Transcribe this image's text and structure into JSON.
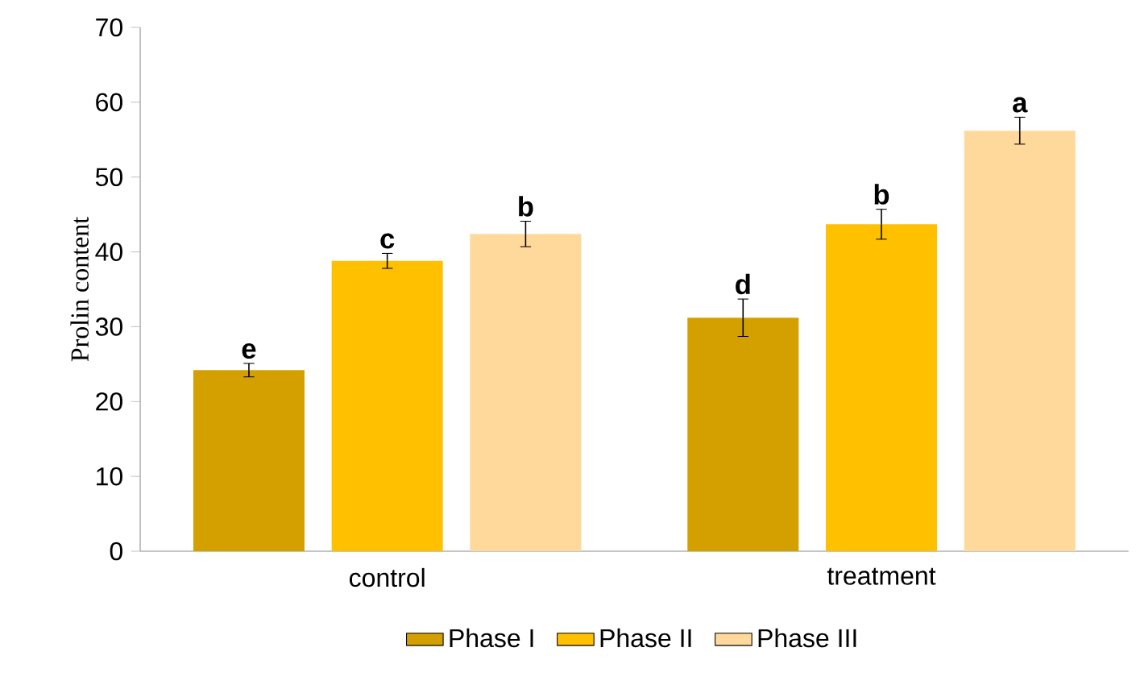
{
  "chart_data": {
    "type": "bar",
    "ylabel": "Prolin content",
    "categories": [
      "control",
      "treatment"
    ],
    "series": [
      {
        "name": "Phase I",
        "color": "#d4a000",
        "values": [
          24.2,
          31.2
        ],
        "errors": [
          0.9,
          2.5
        ],
        "value_labels": [
          "e",
          "d"
        ]
      },
      {
        "name": "Phase II",
        "color": "#ffc000",
        "values": [
          38.8,
          43.7
        ],
        "errors": [
          1.0,
          2.0
        ],
        "value_labels": [
          "c",
          "b"
        ]
      },
      {
        "name": "Phase III",
        "color": "#ffd99b",
        "values": [
          42.4,
          56.2
        ],
        "errors": [
          1.7,
          1.8
        ],
        "value_labels": [
          "b",
          "a"
        ]
      }
    ],
    "ylim": [
      0,
      70
    ],
    "yticks": [
      0,
      10,
      20,
      30,
      40,
      50,
      60,
      70
    ],
    "grid": false,
    "legend": "bottom"
  }
}
